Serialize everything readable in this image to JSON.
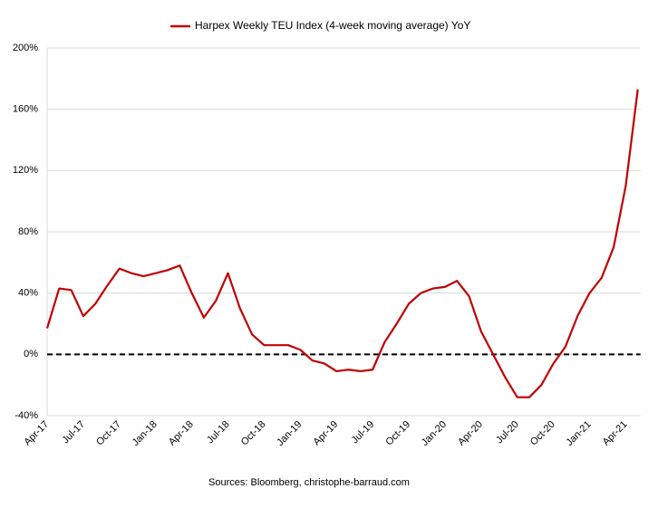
{
  "chart_data": {
    "type": "line",
    "series": [
      {
        "name": "Harpex Weekly TEU Index (4-week moving average) YoY",
        "color": "#c00000",
        "values": [
          17,
          43,
          42,
          25,
          33,
          45,
          56,
          53,
          51,
          53,
          55,
          58,
          40,
          24,
          35,
          53,
          30,
          13,
          6,
          6,
          6,
          3,
          -4,
          -6,
          -11,
          -10,
          -11,
          -10,
          8,
          20,
          33,
          40,
          43,
          44,
          48,
          38,
          15,
          0,
          -15,
          -28,
          -28,
          -20,
          -6,
          5,
          25,
          40,
          50,
          70,
          110,
          173
        ]
      }
    ],
    "categories": [
      "Apr-17",
      null,
      null,
      "Jul-17",
      null,
      null,
      "Oct-17",
      null,
      null,
      "Jan-18",
      null,
      null,
      "Apr-18",
      null,
      null,
      "Jul-18",
      null,
      null,
      "Oct-18",
      null,
      null,
      "Jan-19",
      null,
      null,
      "Apr-19",
      null,
      null,
      "Jul-19",
      null,
      null,
      "Oct-19",
      null,
      null,
      "Jan-20",
      null,
      null,
      "Apr-20",
      null,
      null,
      "Jul-20",
      null,
      null,
      "Oct-20",
      null,
      null,
      "Jan-21",
      null,
      null,
      "Apr-21",
      null
    ],
    "ylim": [
      -40,
      200
    ],
    "yticks": [
      {
        "value": -40,
        "label": "-40%"
      },
      {
        "value": 0,
        "label": "0%"
      },
      {
        "value": 40,
        "label": "40%"
      },
      {
        "value": 80,
        "label": "80%"
      },
      {
        "value": 120,
        "label": "120%"
      },
      {
        "value": 160,
        "label": "160%"
      },
      {
        "value": 200,
        "label": "200%"
      }
    ],
    "grid": true,
    "zero_line": "dashed",
    "legend": "top",
    "source": "Sources: Bloomberg, christophe-barraud.com"
  }
}
